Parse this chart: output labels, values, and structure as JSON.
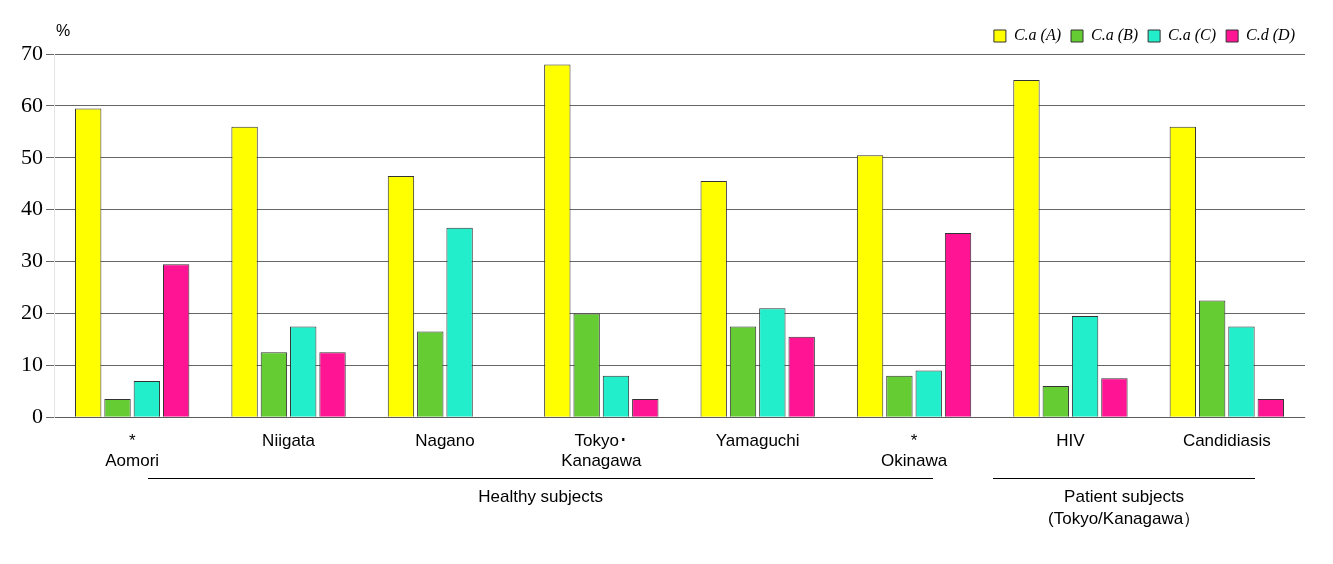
{
  "chart_data": {
    "type": "bar",
    "ylabel": "%",
    "categories": [
      "*\nAomori",
      "Niigata",
      "Nagano",
      "Tokyo･\nKanagawa",
      "Yamaguchi",
      "*\nOkinawa",
      "HIV",
      "Candidiasis"
    ],
    "series": [
      {
        "name": "C.a (A)",
        "color": "#ffff00",
        "values": [
          59.5,
          56,
          46.5,
          68,
          45.5,
          50.5,
          65,
          56
        ]
      },
      {
        "name": "C.a (B)",
        "color": "#66cc33",
        "values": [
          3.5,
          12.5,
          16.5,
          20,
          17.5,
          8,
          6,
          22.5
        ]
      },
      {
        "name": "C.a (C)",
        "color": "#22eecc",
        "values": [
          7,
          17.5,
          36.5,
          8,
          21,
          9,
          19.5,
          17.5
        ]
      },
      {
        "name": "C.d (D)",
        "color": "#ff1493",
        "values": [
          29.5,
          12.5,
          0,
          3.5,
          15.5,
          35.5,
          7.5,
          3.5
        ]
      }
    ],
    "ylim": [
      0,
      70
    ],
    "yticks": [
      0,
      10,
      20,
      30,
      40,
      50,
      60,
      70
    ],
    "grid": "y",
    "legend": "top right",
    "annotations": [
      "Healthy subjects",
      "Patient subjects (Tokyo/Kanagawa）"
    ]
  }
}
